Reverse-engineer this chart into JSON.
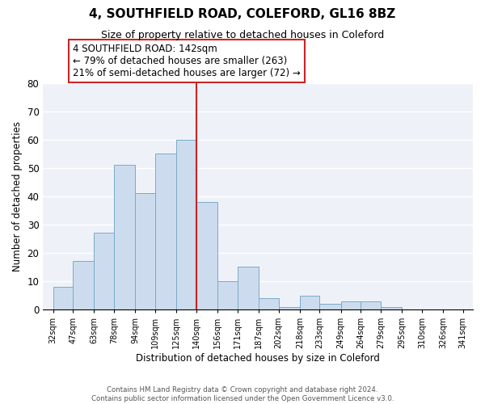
{
  "title": "4, SOUTHFIELD ROAD, COLEFORD, GL16 8BZ",
  "subtitle": "Size of property relative to detached houses in Coleford",
  "xlabel": "Distribution of detached houses by size in Coleford",
  "ylabel": "Number of detached properties",
  "bins": [
    32,
    47,
    63,
    78,
    94,
    109,
    125,
    140,
    156,
    171,
    187,
    202,
    218,
    233,
    249,
    264,
    279,
    295,
    310,
    326,
    341
  ],
  "counts": [
    8,
    17,
    27,
    51,
    41,
    55,
    60,
    38,
    10,
    15,
    4,
    1,
    5,
    2,
    3,
    3,
    1,
    0,
    0,
    0
  ],
  "bar_color": "#ccdcee",
  "bar_edge_color": "#7aaac8",
  "vline_x": 140,
  "vline_color": "#cc2222",
  "ylim": [
    0,
    80
  ],
  "yticks": [
    0,
    10,
    20,
    30,
    40,
    50,
    60,
    70,
    80
  ],
  "annotation_title": "4 SOUTHFIELD ROAD: 142sqm",
  "annotation_line1": "← 79% of detached houses are smaller (263)",
  "annotation_line2": "21% of semi-detached houses are larger (72) →",
  "footer_line1": "Contains HM Land Registry data © Crown copyright and database right 2024.",
  "footer_line2": "Contains public sector information licensed under the Open Government Licence v3.0.",
  "plot_bg_color": "#eef2f8",
  "tick_labels": [
    "32sqm",
    "47sqm",
    "63sqm",
    "78sqm",
    "94sqm",
    "109sqm",
    "125sqm",
    "140sqm",
    "156sqm",
    "171sqm",
    "187sqm",
    "202sqm",
    "218sqm",
    "233sqm",
    "249sqm",
    "264sqm",
    "279sqm",
    "295sqm",
    "310sqm",
    "326sqm",
    "341sqm"
  ]
}
